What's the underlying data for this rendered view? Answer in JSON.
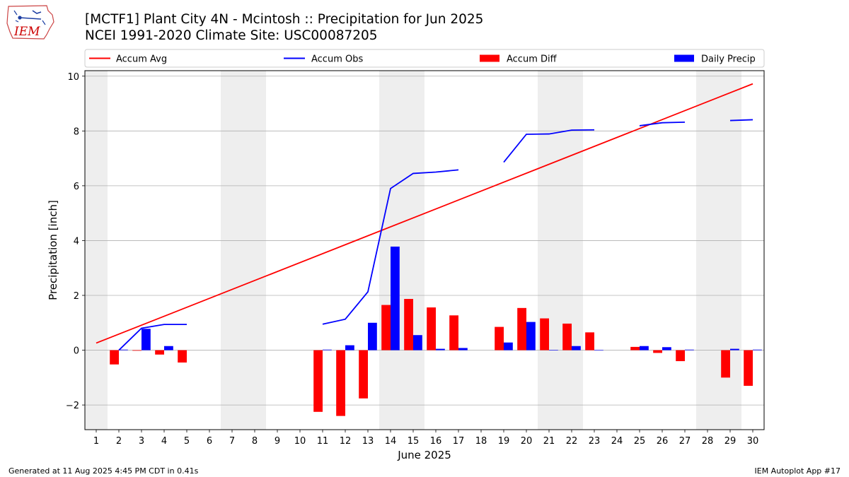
{
  "header": {
    "title_line1": "[MCTF1] Plant City 4N - Mcintosh :: Precipitation for Jun 2025",
    "title_line2": "NCEI 1991-2020 Climate Site: USC00087205",
    "logo_text": "IEM"
  },
  "footer": {
    "left": "Generated at 11 Aug 2025 4:45 PM CDT in 0.41s",
    "right": "IEM Autoplot App #17"
  },
  "colors": {
    "accum_avg": "#ff0000",
    "accum_obs": "#0000ff",
    "accum_diff": "#ff0000",
    "daily_precip": "#0000ff",
    "weekend_shade": "#eeeeee",
    "grid": "#b0b0b0"
  },
  "chart_data": {
    "type": "bar",
    "xlabel": "June 2025",
    "ylabel": "Precipitation [inch]",
    "xlim": [
      0.5,
      30.5
    ],
    "ylim": [
      -2.9,
      10.2
    ],
    "yticks": [
      -2,
      0,
      2,
      4,
      6,
      8,
      10
    ],
    "ytick_labels": [
      "−2",
      "0",
      "2",
      "4",
      "6",
      "8",
      "10"
    ],
    "x_ticks": [
      1,
      2,
      3,
      4,
      5,
      6,
      7,
      8,
      9,
      10,
      11,
      12,
      13,
      14,
      15,
      16,
      17,
      18,
      19,
      20,
      21,
      22,
      23,
      24,
      25,
      26,
      27,
      28,
      29,
      30
    ],
    "x_tick_labels": [
      "1",
      "2",
      "3",
      "4",
      "5",
      "6",
      "7",
      "8",
      "9",
      "10",
      "11",
      "12",
      "13",
      "14",
      "15",
      "16",
      "17",
      "18",
      "19",
      "20",
      "21",
      "22",
      "23",
      "24",
      "25",
      "26",
      "27",
      "28",
      "29",
      "30"
    ],
    "grid": "y",
    "legend_position": "top",
    "shaded_days": [
      1,
      7,
      8,
      14,
      15,
      21,
      22,
      28,
      29
    ],
    "series": [
      {
        "name": "Accum Avg",
        "kind": "line",
        "x": [
          1,
          30
        ],
        "values": [
          0.26,
          9.72
        ]
      },
      {
        "name": "Accum Obs",
        "kind": "line",
        "x": [
          1,
          2,
          3,
          4,
          5,
          6,
          7,
          8,
          9,
          10,
          11,
          12,
          13,
          14,
          15,
          16,
          17,
          18,
          19,
          20,
          21,
          22,
          23,
          24,
          25,
          26,
          27,
          28,
          29,
          30
        ],
        "values": [
          null,
          0.0,
          0.8,
          0.94,
          0.94,
          null,
          null,
          null,
          null,
          null,
          0.95,
          1.13,
          2.13,
          5.9,
          6.45,
          6.5,
          6.58,
          null,
          6.86,
          7.88,
          7.89,
          8.03,
          8.04,
          null,
          8.19,
          8.3,
          8.32,
          null,
          8.38,
          8.41
        ]
      },
      {
        "name": "Accum Diff",
        "kind": "bar",
        "x": [
          1,
          2,
          3,
          4,
          5,
          6,
          7,
          8,
          9,
          10,
          11,
          12,
          13,
          14,
          15,
          16,
          17,
          18,
          19,
          20,
          21,
          22,
          23,
          24,
          25,
          26,
          27,
          28,
          29,
          30
        ],
        "values": [
          null,
          -0.52,
          -0.02,
          -0.16,
          -0.45,
          null,
          null,
          null,
          null,
          null,
          -2.25,
          -2.4,
          -1.76,
          1.65,
          1.87,
          1.56,
          1.27,
          null,
          0.85,
          1.54,
          1.16,
          0.97,
          0.65,
          null,
          0.12,
          -0.1,
          -0.4,
          null,
          -1.0,
          -1.3
        ]
      },
      {
        "name": "Daily Precip",
        "kind": "bar",
        "x": [
          1,
          2,
          3,
          4,
          5,
          6,
          7,
          8,
          9,
          10,
          11,
          12,
          13,
          14,
          15,
          16,
          17,
          18,
          19,
          20,
          21,
          22,
          23,
          24,
          25,
          26,
          27,
          28,
          29,
          30
        ],
        "values": [
          null,
          0.02,
          0.78,
          0.15,
          0.0,
          null,
          null,
          null,
          null,
          null,
          0.02,
          0.18,
          1.0,
          3.78,
          0.55,
          0.05,
          0.08,
          null,
          0.28,
          1.03,
          0.01,
          0.15,
          0.01,
          null,
          0.15,
          0.11,
          0.02,
          null,
          0.05,
          0.02
        ]
      }
    ]
  }
}
